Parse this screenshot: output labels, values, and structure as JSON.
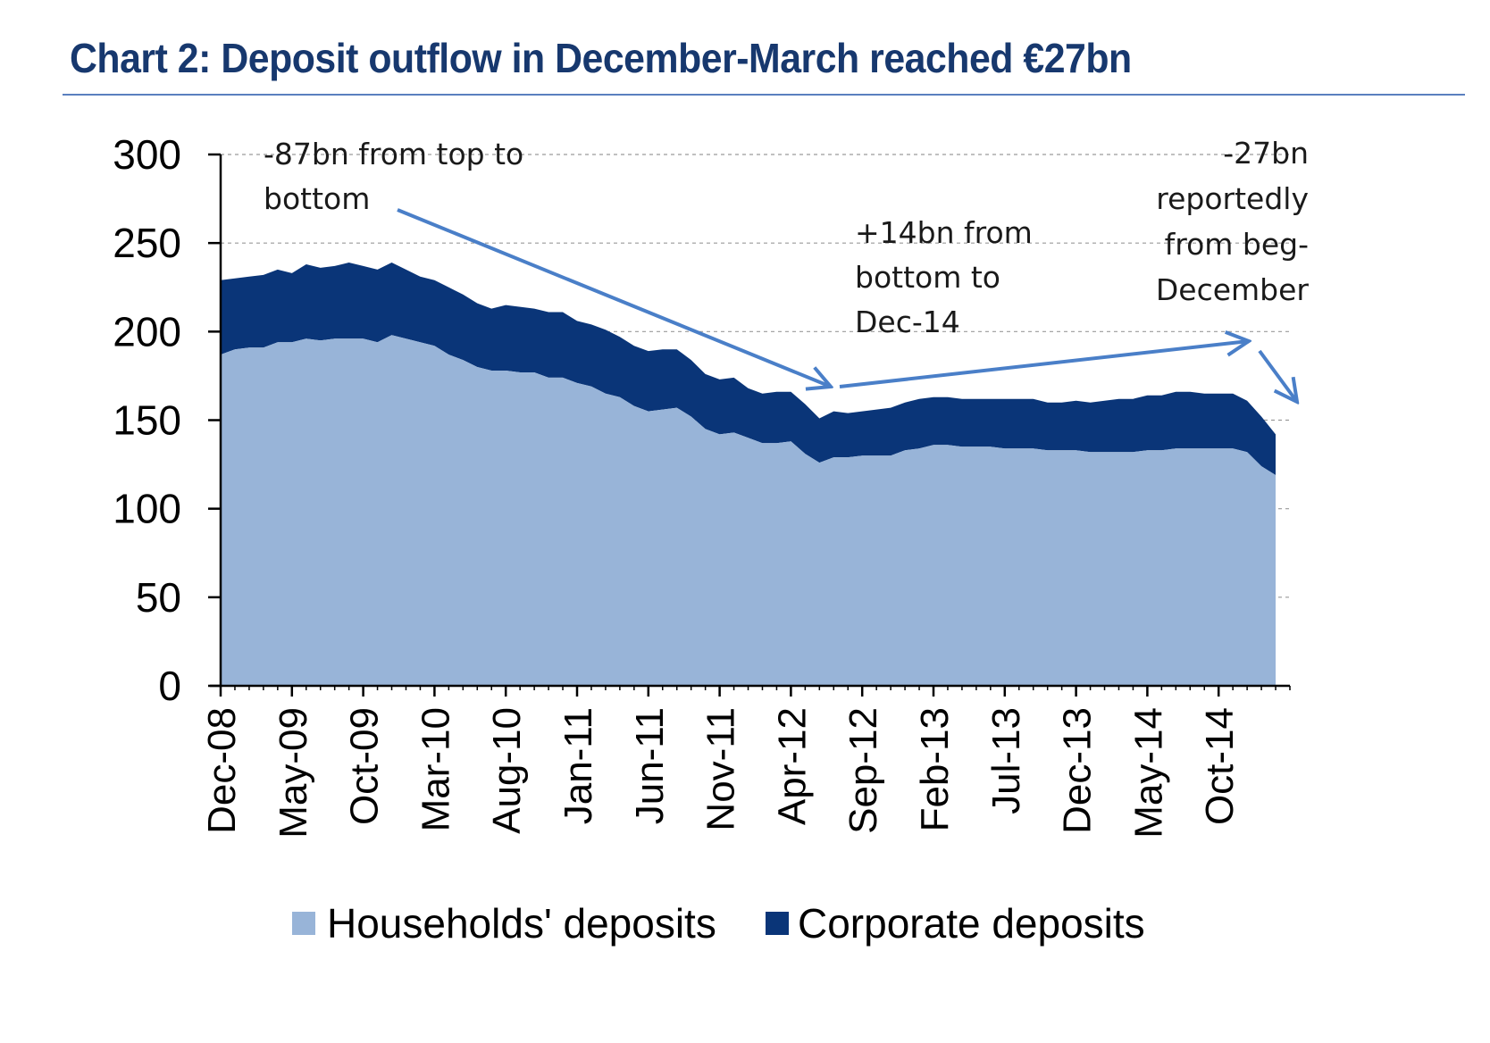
{
  "title": "Chart 2: Deposit outflow in December-March reached €27bn",
  "colors": {
    "title": "#17386e",
    "households": "#98b4d8",
    "corporate": "#0a3578",
    "arrow": "#4a7fc8",
    "grid": "#9a9a9a"
  },
  "chart_data": {
    "type": "area",
    "stacked": true,
    "title": "Chart 2: Deposit outflow in December-March reached €27bn",
    "xlabel": "",
    "ylabel": "",
    "ylim": [
      0,
      300
    ],
    "yticks": [
      "0",
      "50",
      "100",
      "150",
      "200",
      "250",
      "300"
    ],
    "grid": "horizontal dashed",
    "x_tick_labels": [
      "Dec-08",
      "May-09",
      "Oct-09",
      "Mar-10",
      "Aug-10",
      "Jan-11",
      "Jun-11",
      "Nov-11",
      "Apr-12",
      "Sep-12",
      "Feb-13",
      "Jul-13",
      "Dec-13",
      "May-14",
      "Oct-14"
    ],
    "x_range": [
      "Dec-08",
      "Mar-15"
    ],
    "x_start": "Dec-08",
    "x_end": "Mar-15",
    "series": [
      {
        "name": "Households' deposits",
        "values": [
          187,
          190,
          191,
          191,
          194,
          194,
          196,
          195,
          196,
          196,
          196,
          194,
          198,
          196,
          194,
          192,
          187,
          184,
          180,
          178,
          178,
          177,
          177,
          174,
          174,
          171,
          169,
          165,
          163,
          158,
          155,
          156,
          157,
          152,
          145,
          142,
          143,
          140,
          137,
          137,
          138,
          131,
          126,
          129,
          129,
          130,
          130,
          130,
          133,
          134,
          136,
          136,
          135,
          135,
          135,
          134,
          134,
          134,
          133,
          133,
          133,
          132,
          132,
          132,
          132,
          133,
          133,
          134,
          134,
          134,
          134,
          134,
          132,
          124,
          119
        ]
      },
      {
        "name": "Corporate deposits",
        "values": [
          42,
          40,
          40,
          41,
          41,
          39,
          42,
          41,
          41,
          43,
          41,
          41,
          41,
          39,
          37,
          37,
          38,
          37,
          36,
          35,
          37,
          37,
          36,
          37,
          37,
          35,
          35,
          36,
          34,
          34,
          34,
          34,
          33,
          32,
          31,
          31,
          31,
          28,
          28,
          29,
          28,
          28,
          25,
          26,
          25,
          25,
          26,
          27,
          27,
          28,
          27,
          27,
          27,
          27,
          27,
          28,
          28,
          28,
          27,
          27,
          28,
          28,
          29,
          30,
          30,
          31,
          31,
          32,
          32,
          31,
          31,
          31,
          29,
          28,
          23
        ]
      }
    ],
    "annotations": [
      {
        "lines": [
          "-87bn from top to",
          "bottom"
        ]
      },
      {
        "lines": [
          "+14bn from",
          "bottom to",
          "Dec-14"
        ]
      },
      {
        "lines": [
          "-27bn",
          "reportedly",
          "from beg-",
          "December"
        ]
      }
    ],
    "legend": {
      "placement": "bottom-center",
      "entries": [
        "Households' deposits",
        "Corporate deposits"
      ]
    }
  }
}
